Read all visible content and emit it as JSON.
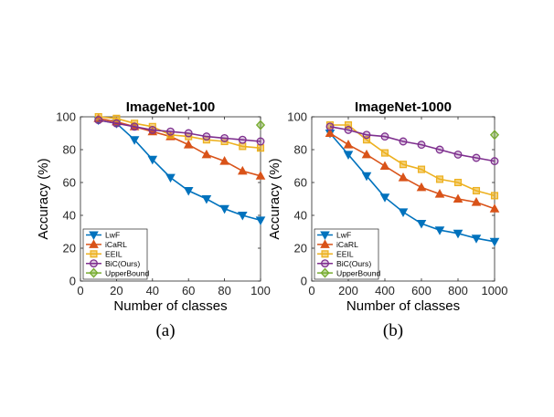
{
  "figure": {
    "captions": [
      "(a)",
      "(b)"
    ]
  },
  "series_styles": {
    "LwF": {
      "color": "#0072BD",
      "marker": "triangle-down"
    },
    "iCaRL": {
      "color": "#D95319",
      "marker": "triangle-up"
    },
    "EEIL": {
      "color": "#EDB120",
      "marker": "square"
    },
    "BiC(Ours)": {
      "color": "#7E2F8E",
      "marker": "circle"
    },
    "UpperBound": {
      "color": "#77AC30",
      "marker": "diamond"
    }
  },
  "chart_data": [
    {
      "type": "line",
      "title": "ImageNet-100",
      "xlabel": "Number of classes",
      "ylabel": "Accuracy (%)",
      "xlim": [
        0,
        100
      ],
      "ylim": [
        0,
        100
      ],
      "xticks": [
        0,
        20,
        40,
        60,
        80,
        100
      ],
      "yticks": [
        0,
        20,
        40,
        60,
        80,
        100
      ],
      "grid": false,
      "legend_position": "bottom-left",
      "x": [
        10,
        20,
        30,
        40,
        50,
        60,
        70,
        80,
        90,
        100
      ],
      "series": [
        {
          "name": "LwF",
          "values": [
            98,
            96,
            86,
            74,
            63,
            55,
            50,
            44,
            40,
            37
          ]
        },
        {
          "name": "iCaRL",
          "values": [
            99,
            97,
            94,
            91,
            88,
            83,
            77,
            73,
            67,
            64
          ]
        },
        {
          "name": "EEIL",
          "values": [
            100,
            99,
            96,
            94,
            89,
            88,
            86,
            85,
            82,
            81
          ]
        },
        {
          "name": "BiC(Ours)",
          "values": [
            98,
            96,
            94,
            92,
            91,
            90,
            88,
            87,
            86,
            85
          ]
        },
        {
          "name": "UpperBound",
          "x": [
            100
          ],
          "values": [
            95
          ]
        }
      ]
    },
    {
      "type": "line",
      "title": "ImageNet-1000",
      "xlabel": "Number of classes",
      "ylabel": "Accuracy (%)",
      "xlim": [
        0,
        1000
      ],
      "ylim": [
        0,
        100
      ],
      "xticks": [
        0,
        200,
        400,
        600,
        800,
        1000
      ],
      "yticks": [
        0,
        20,
        40,
        60,
        80,
        100
      ],
      "grid": false,
      "legend_position": "bottom-left",
      "x": [
        100,
        200,
        300,
        400,
        500,
        600,
        700,
        800,
        900,
        1000
      ],
      "series": [
        {
          "name": "LwF",
          "values": [
            90,
            77,
            64,
            51,
            42,
            35,
            31,
            29,
            26,
            24
          ]
        },
        {
          "name": "iCaRL",
          "values": [
            90,
            83,
            77,
            70,
            63,
            57,
            53,
            50,
            48,
            44
          ]
        },
        {
          "name": "EEIL",
          "values": [
            95,
            95,
            86,
            78,
            71,
            68,
            62,
            60,
            55,
            52
          ]
        },
        {
          "name": "BiC(Ours)",
          "values": [
            94,
            92,
            89,
            88,
            85,
            83,
            80,
            77,
            75,
            73
          ]
        },
        {
          "name": "UpperBound",
          "x": [
            1000
          ],
          "values": [
            89
          ]
        }
      ]
    }
  ]
}
